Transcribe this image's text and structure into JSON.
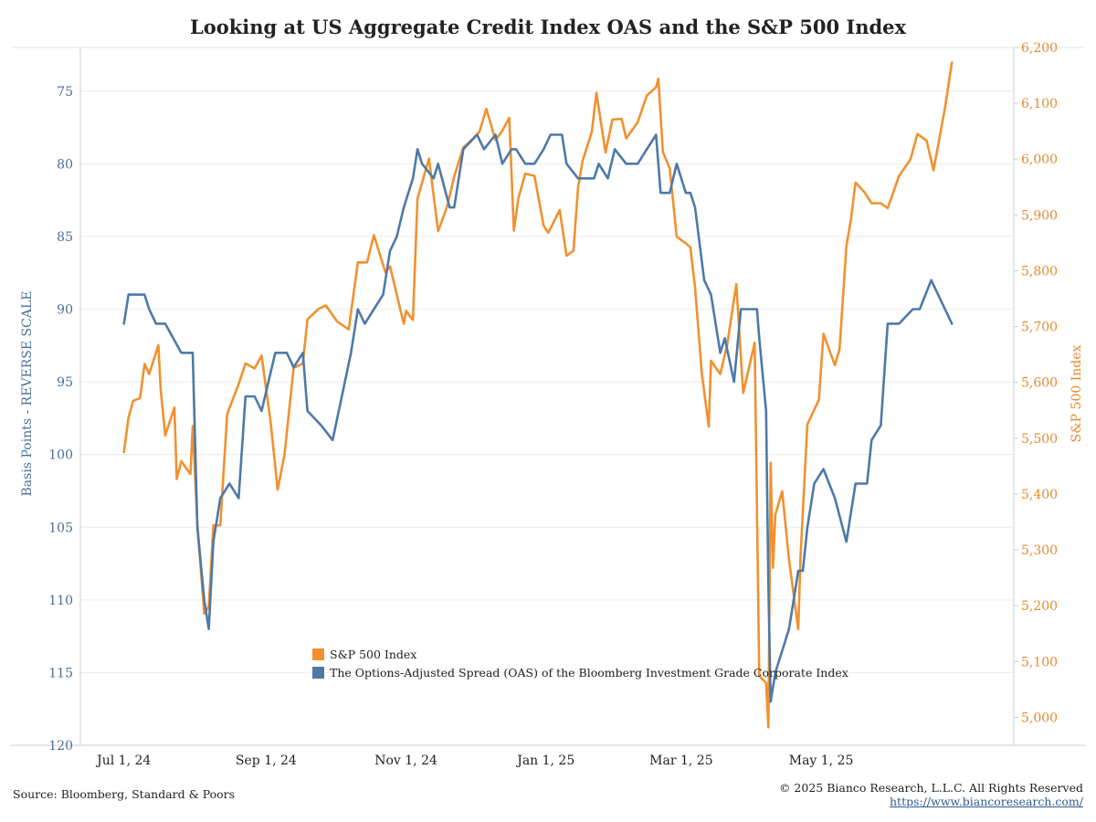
{
  "colors": {
    "spx": "#f0912f",
    "oas": "#4e79a7",
    "grid": "#ececec",
    "axis": "#cfcfcf"
  },
  "footer": {
    "source": "Source: Bloomberg, Standard & Poors",
    "copyright": "© 2025 Bianco Research, L.L.C. All Rights Reserved",
    "url": "https://www.biancoresearch.com/"
  },
  "chart_data": {
    "type": "line",
    "title": "Looking at US Aggregate Credit Index OAS and the S&P 500 Index",
    "y_left": {
      "label": "Basis Points - REVERSE SCALE",
      "range": [
        120,
        72
      ],
      "reversed": true,
      "ticks": [
        75,
        80,
        85,
        90,
        95,
        100,
        105,
        110,
        115,
        120
      ]
    },
    "y_right": {
      "label": "S&P 500 Index",
      "range": [
        4950,
        6200
      ],
      "ticks": [
        "5,000",
        "5,100",
        "5,200",
        "5,300",
        "5,400",
        "5,500",
        "5,600",
        "5,700",
        "5,800",
        "5,900",
        "6,000",
        "6,100",
        "6,200"
      ],
      "tick_values": [
        5000,
        5100,
        5200,
        5300,
        5400,
        5500,
        5600,
        5700,
        5800,
        5900,
        6000,
        6100,
        6200
      ]
    },
    "x_axis": {
      "type": "date",
      "range": [
        "2024-06-12",
        "2025-07-24"
      ],
      "tick_labels": [
        "Jul 1, 24",
        "Sep 1, 24",
        "Nov 1, 24",
        "Jan 1, 25",
        "Mar 1, 25",
        "May 1, 25"
      ],
      "tick_dates": [
        "2024-07-01",
        "2024-09-01",
        "2024-11-01",
        "2025-01-01",
        "2025-03-01",
        "2025-05-01"
      ]
    },
    "grid": "horizontal",
    "legend_position": "bottom-center",
    "series": [
      {
        "name": "S&P 500 Index",
        "axis": "right",
        "color": "#f0912f",
        "x": [
          "2024-07-01",
          "2024-07-03",
          "2024-07-05",
          "2024-07-08",
          "2024-07-10",
          "2024-07-12",
          "2024-07-16",
          "2024-07-17",
          "2024-07-19",
          "2024-07-23",
          "2024-07-24",
          "2024-07-26",
          "2024-07-30",
          "2024-07-31",
          "2024-08-02",
          "2024-08-05",
          "2024-08-07",
          "2024-08-09",
          "2024-08-12",
          "2024-08-15",
          "2024-08-16",
          "2024-08-20",
          "2024-08-23",
          "2024-08-27",
          "2024-08-30",
          "2024-09-03",
          "2024-09-06",
          "2024-09-09",
          "2024-09-13",
          "2024-09-17",
          "2024-09-19",
          "2024-09-24",
          "2024-09-27",
          "2024-10-02",
          "2024-10-07",
          "2024-10-11",
          "2024-10-15",
          "2024-10-18",
          "2024-10-23",
          "2024-10-25",
          "2024-10-31",
          "2024-11-01",
          "2024-11-04",
          "2024-11-06",
          "2024-11-11",
          "2024-11-15",
          "2024-11-19",
          "2024-11-22",
          "2024-11-26",
          "2024-11-29",
          "2024-12-03",
          "2024-12-06",
          "2024-12-10",
          "2024-12-13",
          "2024-12-16",
          "2024-12-18",
          "2024-12-20",
          "2024-12-23",
          "2024-12-27",
          "2024-12-31",
          "2025-01-02",
          "2025-01-07",
          "2025-01-10",
          "2025-01-13",
          "2025-01-15",
          "2025-01-17",
          "2025-01-21",
          "2025-01-23",
          "2025-01-27",
          "2025-01-30",
          "2025-02-03",
          "2025-02-05",
          "2025-02-10",
          "2025-02-14",
          "2025-02-18",
          "2025-02-19",
          "2025-02-21",
          "2025-02-24",
          "2025-02-27",
          "2025-03-03",
          "2025-03-05",
          "2025-03-07",
          "2025-03-10",
          "2025-03-13",
          "2025-03-14",
          "2025-03-18",
          "2025-03-21",
          "2025-03-25",
          "2025-03-28",
          "2025-04-02",
          "2025-04-04",
          "2025-04-07",
          "2025-04-08",
          "2025-04-09",
          "2025-04-10",
          "2025-04-11",
          "2025-04-14",
          "2025-04-17",
          "2025-04-21",
          "2025-04-22",
          "2025-04-25",
          "2025-04-30",
          "2025-05-02",
          "2025-05-07",
          "2025-05-09",
          "2025-05-12",
          "2025-05-14",
          "2025-05-16",
          "2025-05-20",
          "2025-05-23",
          "2025-05-27",
          "2025-05-30",
          "2025-06-04",
          "2025-06-09",
          "2025-06-12",
          "2025-06-16",
          "2025-06-19",
          "2025-06-24",
          "2025-06-27"
        ],
        "values": [
          5475,
          5537,
          5567,
          5572,
          5633,
          5615,
          5667,
          5588,
          5505,
          5555,
          5427,
          5459,
          5436,
          5522,
          5346,
          5186,
          5199,
          5344,
          5344,
          5543,
          5554,
          5597,
          5634,
          5625,
          5648,
          5528,
          5408,
          5471,
          5626,
          5634,
          5713,
          5732,
          5738,
          5709,
          5695,
          5815,
          5815,
          5864,
          5797,
          5808,
          5705,
          5728,
          5712,
          5929,
          6001,
          5871,
          5916,
          5969,
          6021,
          6032,
          6049,
          6090,
          6034,
          6051,
          6074,
          5872,
          5930,
          5974,
          5970,
          5881,
          5868,
          5909,
          5827,
          5836,
          5949,
          5997,
          6049,
          6119,
          6012,
          6071,
          6072,
          6037,
          6066,
          6114,
          6129,
          6144,
          6013,
          5983,
          5861,
          5849,
          5842,
          5770,
          5615,
          5521,
          5639,
          5615,
          5667,
          5776,
          5581,
          5671,
          5074,
          5062,
          4982,
          5456,
          5268,
          5363,
          5405,
          5282,
          5158,
          5288,
          5525,
          5569,
          5687,
          5631,
          5660,
          5844,
          5892,
          5958,
          5940,
          5921,
          5921,
          5912,
          5970,
          6000,
          6045,
          6033,
          5980,
          6092,
          6173
        ]
      },
      {
        "name": "The Options-Adjusted Spread (OAS) of the Bloomberg Investment Grade Corporate Index",
        "axis": "left",
        "color": "#4e79a7",
        "x": [
          "2024-07-01",
          "2024-07-03",
          "2024-07-10",
          "2024-07-12",
          "2024-07-15",
          "2024-07-17",
          "2024-07-19",
          "2024-07-26",
          "2024-07-31",
          "2024-08-02",
          "2024-08-05",
          "2024-08-07",
          "2024-08-09",
          "2024-08-12",
          "2024-08-16",
          "2024-08-20",
          "2024-08-23",
          "2024-08-27",
          "2024-08-30",
          "2024-09-05",
          "2024-09-10",
          "2024-09-13",
          "2024-09-17",
          "2024-09-19",
          "2024-09-25",
          "2024-09-30",
          "2024-10-04",
          "2024-10-08",
          "2024-10-11",
          "2024-10-14",
          "2024-10-18",
          "2024-10-22",
          "2024-10-25",
          "2024-10-28",
          "2024-10-31",
          "2024-11-04",
          "2024-11-06",
          "2024-11-08",
          "2024-11-13",
          "2024-11-15",
          "2024-11-20",
          "2024-11-22",
          "2024-11-26",
          "2024-12-02",
          "2024-12-05",
          "2024-12-10",
          "2024-12-13",
          "2024-12-17",
          "2024-12-19",
          "2024-12-23",
          "2024-12-27",
          "2024-12-31",
          "2025-01-03",
          "2025-01-08",
          "2025-01-10",
          "2025-01-15",
          "2025-01-17",
          "2025-01-22",
          "2025-01-24",
          "2025-01-28",
          "2025-01-31",
          "2025-02-05",
          "2025-02-10",
          "2025-02-14",
          "2025-02-18",
          "2025-02-20",
          "2025-02-24",
          "2025-02-27",
          "2025-03-03",
          "2025-03-05",
          "2025-03-07",
          "2025-03-11",
          "2025-03-14",
          "2025-03-18",
          "2025-03-20",
          "2025-03-24",
          "2025-03-27",
          "2025-03-31",
          "2025-04-03",
          "2025-04-04",
          "2025-04-07",
          "2025-04-08",
          "2025-04-09",
          "2025-04-11",
          "2025-04-15",
          "2025-04-17",
          "2025-04-21",
          "2025-04-23",
          "2025-04-25",
          "2025-04-28",
          "2025-05-02",
          "2025-05-07",
          "2025-05-12",
          "2025-05-16",
          "2025-05-21",
          "2025-05-23",
          "2025-05-27",
          "2025-05-30",
          "2025-06-04",
          "2025-06-10",
          "2025-06-13",
          "2025-06-18",
          "2025-06-24",
          "2025-06-27"
        ],
        "values": [
          91,
          89,
          89,
          90,
          91,
          91,
          91,
          93,
          93,
          105,
          110,
          112,
          106,
          103,
          102,
          103,
          96,
          96,
          97,
          93,
          93,
          94,
          93,
          97,
          98,
          99,
          96,
          93,
          90,
          91,
          90,
          89,
          86,
          85,
          83,
          81,
          79,
          80,
          81,
          80,
          83,
          83,
          79,
          78,
          79,
          78,
          80,
          79,
          79,
          80,
          80,
          79,
          78,
          78,
          80,
          81,
          81,
          81,
          80,
          81,
          79,
          80,
          80,
          79,
          78,
          82,
          82,
          80,
          82,
          82,
          83,
          88,
          89,
          93,
          92,
          95,
          90,
          90,
          90,
          92,
          97,
          109,
          117,
          115,
          113,
          112,
          108,
          108,
          105,
          102,
          101,
          103,
          106,
          102,
          102,
          99,
          98,
          91,
          91,
          90,
          90,
          88,
          90,
          91
        ]
      }
    ]
  }
}
